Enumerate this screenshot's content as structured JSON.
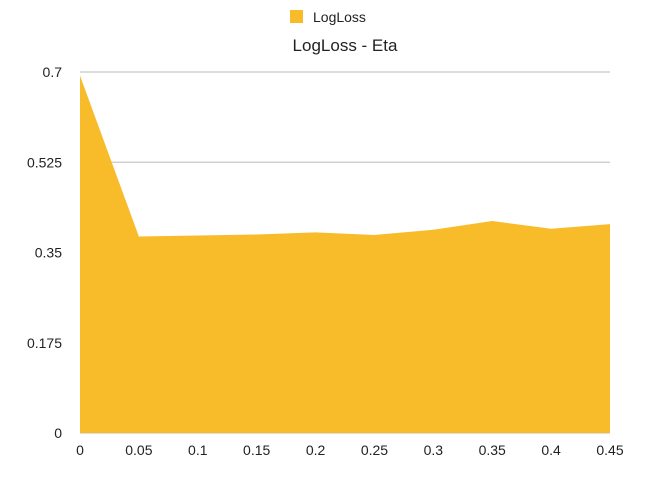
{
  "chart_data": {
    "type": "area",
    "title": "LogLoss - Eta",
    "xlabel": "",
    "ylabel": "",
    "legend_position": "top-center",
    "grid": true,
    "x": [
      "0",
      "0.05",
      "0.1",
      "0.15",
      "0.2",
      "0.25",
      "0.3",
      "0.35",
      "0.4",
      "0.45"
    ],
    "yticks": [
      "0",
      "0.175",
      "0.35",
      "0.525",
      "0.7"
    ],
    "ylim": [
      0,
      0.7
    ],
    "series": [
      {
        "name": "LogLoss",
        "color": "#F8BC2A",
        "values": [
          0.693,
          0.381,
          0.383,
          0.385,
          0.389,
          0.384,
          0.394,
          0.411,
          0.396,
          0.405
        ]
      }
    ]
  }
}
